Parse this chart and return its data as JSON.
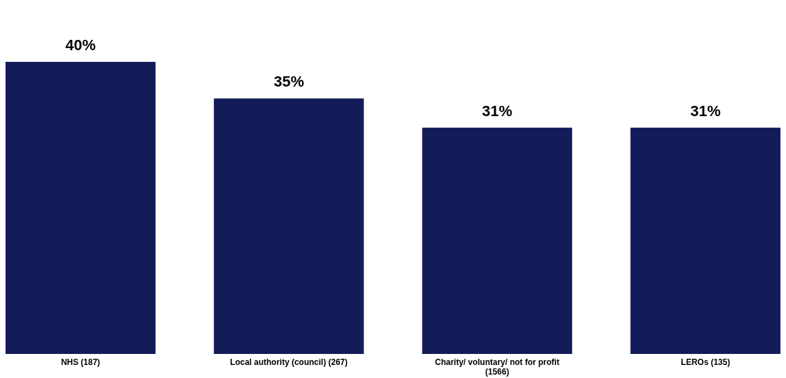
{
  "chart_data": {
    "type": "bar",
    "categories": [
      "NHS (187)",
      "Local authority (council) (267)",
      "Charity/ voluntary/ not for profit (1566)",
      "LEROs (135)"
    ],
    "values": [
      40,
      35,
      31,
      31
    ],
    "value_labels": [
      "40%",
      "35%",
      "31%",
      "31%"
    ],
    "color": "#141b59"
  }
}
